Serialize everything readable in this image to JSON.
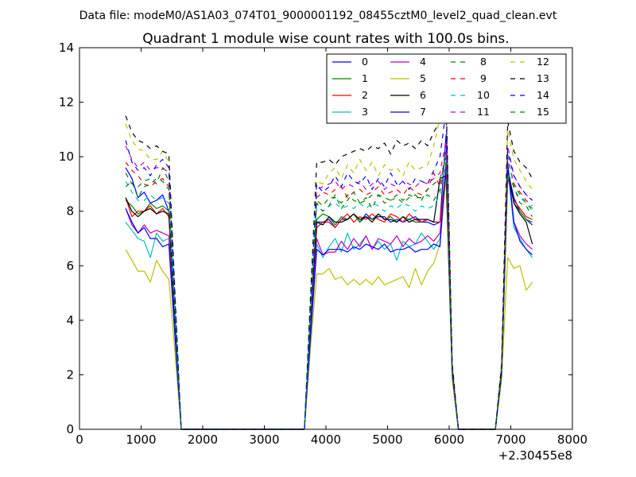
{
  "figure": {
    "suptitle": "Data file: modeM0/AS1A03_074T01_9000001192_08455cztM0_level2_quad_clean.evt"
  },
  "chart_data": {
    "type": "line",
    "title": "Quadrant 1 module wise count rates with 100.0s bins.",
    "xlabel": "",
    "ylabel": "",
    "xlim": [
      0,
      8000
    ],
    "ylim": [
      0,
      14
    ],
    "x_offset_label": "+2.30455e8",
    "xticks": [
      "0",
      "1000",
      "2000",
      "3000",
      "4000",
      "5000",
      "6000",
      "7000",
      "8000"
    ],
    "yticks": [
      "0",
      "2",
      "4",
      "6",
      "8",
      "10",
      "12",
      "14"
    ],
    "grid": false,
    "legend_position": "top-right",
    "legend_columns": 4,
    "x": [
      750,
      850,
      950,
      1050,
      1150,
      1250,
      1350,
      1450,
      1550,
      1650,
      1750,
      3650,
      3750,
      3850,
      3950,
      4050,
      4150,
      4250,
      4350,
      4450,
      4550,
      4650,
      4750,
      4850,
      4950,
      5050,
      5150,
      5250,
      5350,
      5450,
      5550,
      5650,
      5750,
      5850,
      5950,
      6050,
      6150,
      6250,
      6750,
      6850,
      6950,
      7050,
      7150,
      7250,
      7350
    ],
    "series": [
      {
        "name": "0",
        "color": "#0000ff",
        "style": "solid",
        "values": [
          9.6,
          9.2,
          8.5,
          8.7,
          8.3,
          8.4,
          8.6,
          8.0,
          4.0,
          0,
          0,
          0,
          4.0,
          7.6,
          7.6,
          7.7,
          7.4,
          7.7,
          7.7,
          7.9,
          7.6,
          7.9,
          7.7,
          7.8,
          7.8,
          7.6,
          7.7,
          7.6,
          7.7,
          7.8,
          7.6,
          7.6,
          7.5,
          7.6,
          10.8,
          2.0,
          0,
          0,
          0,
          2.0,
          9.5,
          8.5,
          8.0,
          7.7,
          7.5
        ]
      },
      {
        "name": "1",
        "color": "#008000",
        "style": "solid",
        "values": [
          8.4,
          8.2,
          7.9,
          8.0,
          8.3,
          8.1,
          8.2,
          8.0,
          4.0,
          0,
          0,
          0,
          4.0,
          7.7,
          7.9,
          7.8,
          7.5,
          7.8,
          7.7,
          7.9,
          7.6,
          7.8,
          7.7,
          7.9,
          7.7,
          7.8,
          7.6,
          7.8,
          7.7,
          7.6,
          7.6,
          7.7,
          7.6,
          7.6,
          9.6,
          2.0,
          0,
          0,
          0,
          2.0,
          9.4,
          8.3,
          8.0,
          7.7,
          7.6
        ]
      },
      {
        "name": "2",
        "color": "#ff0000",
        "style": "solid",
        "values": [
          8.5,
          7.8,
          8.0,
          8.0,
          8.2,
          7.9,
          8.1,
          7.8,
          4.0,
          0,
          0,
          0,
          4.0,
          7.4,
          7.6,
          7.6,
          7.4,
          7.7,
          7.9,
          7.6,
          7.8,
          7.7,
          7.9,
          7.7,
          7.6,
          7.9,
          7.8,
          7.6,
          7.9,
          7.7,
          7.6,
          7.7,
          7.6,
          7.6,
          9.6,
          2.0,
          0,
          0,
          0,
          2.0,
          9.2,
          8.4,
          8.1,
          7.8,
          7.7
        ]
      },
      {
        "name": "3",
        "color": "#00bfbf",
        "style": "solid",
        "values": [
          7.6,
          7.3,
          7.0,
          6.9,
          6.3,
          7.2,
          6.9,
          7.0,
          3.5,
          0,
          0,
          0,
          3.5,
          6.8,
          6.3,
          6.7,
          7.0,
          6.5,
          7.2,
          6.6,
          6.8,
          7.1,
          6.6,
          6.9,
          6.6,
          6.8,
          6.2,
          6.9,
          6.7,
          6.8,
          7.2,
          6.9,
          6.6,
          7.0,
          9.4,
          2.0,
          0,
          0,
          0,
          2.0,
          9.6,
          7.4,
          7.0,
          6.6,
          6.3
        ]
      },
      {
        "name": "4",
        "color": "#bf00bf",
        "style": "solid",
        "values": [
          8.1,
          7.5,
          7.2,
          7.5,
          7.2,
          7.3,
          7.2,
          7.1,
          3.6,
          0,
          0,
          0,
          3.6,
          7.0,
          6.4,
          6.5,
          6.5,
          6.9,
          6.6,
          7.0,
          6.7,
          7.1,
          6.6,
          7.0,
          6.9,
          6.8,
          7.1,
          6.7,
          7.0,
          6.8,
          6.9,
          7.1,
          6.9,
          7.2,
          9.5,
          2.0,
          0,
          0,
          0,
          2.0,
          9.8,
          7.6,
          7.1,
          6.8,
          6.6
        ]
      },
      {
        "name": "5",
        "color": "#bfbf00",
        "style": "solid",
        "values": [
          6.6,
          6.2,
          5.8,
          5.8,
          5.4,
          6.2,
          5.8,
          5.5,
          2.8,
          0,
          0,
          0,
          3.0,
          5.7,
          5.7,
          5.9,
          5.5,
          5.6,
          5.3,
          5.5,
          5.3,
          5.5,
          5.3,
          5.6,
          5.3,
          5.4,
          5.5,
          5.6,
          5.2,
          5.9,
          5.3,
          5.8,
          6.1,
          6.8,
          9.2,
          1.8,
          0,
          0,
          0,
          1.8,
          6.3,
          5.9,
          6.0,
          5.1,
          5.4
        ]
      },
      {
        "name": "6",
        "color": "#000000",
        "style": "solid",
        "values": [
          8.5,
          8.0,
          7.8,
          8.0,
          8.1,
          7.9,
          8.0,
          7.9,
          4.0,
          0,
          0,
          0,
          4.0,
          7.6,
          7.5,
          7.8,
          7.6,
          7.6,
          7.7,
          7.9,
          7.7,
          7.8,
          7.6,
          7.9,
          7.7,
          7.7,
          7.6,
          7.8,
          7.6,
          7.7,
          7.7,
          7.7,
          7.6,
          9.2,
          9.3,
          2.0,
          0,
          0,
          0,
          2.0,
          9.6,
          8.3,
          7.9,
          7.6,
          6.8
        ]
      },
      {
        "name": "7",
        "color": "#0000ff",
        "style": "solid",
        "values": [
          8.1,
          7.6,
          7.2,
          7.4,
          7.0,
          7.0,
          6.7,
          6.8,
          3.4,
          0,
          0,
          0,
          3.4,
          6.6,
          6.4,
          6.6,
          6.6,
          6.6,
          6.5,
          6.7,
          6.6,
          6.8,
          6.7,
          6.6,
          6.8,
          6.5,
          6.6,
          6.6,
          6.7,
          6.5,
          6.6,
          6.6,
          6.8,
          6.7,
          9.8,
          2.0,
          0,
          0,
          0,
          2.0,
          9.7,
          7.6,
          6.9,
          6.6,
          6.4
        ]
      },
      {
        "name": "8",
        "color": "#008000",
        "style": "dashed",
        "values": [
          9.4,
          9.0,
          8.9,
          9.1,
          9.2,
          9.0,
          9.6,
          9.1,
          4.5,
          0,
          0,
          0,
          4.3,
          8.4,
          8.2,
          8.5,
          8.5,
          8.3,
          8.6,
          8.4,
          8.3,
          8.4,
          8.6,
          8.6,
          8.5,
          8.4,
          8.6,
          8.4,
          8.6,
          8.5,
          8.5,
          8.6,
          8.4,
          8.8,
          9.8,
          2.1,
          0,
          0,
          0,
          2.1,
          9.9,
          9.0,
          8.6,
          8.3,
          8.1
        ]
      },
      {
        "name": "9",
        "color": "#ff0000",
        "style": "dashed",
        "values": [
          9.8,
          9.5,
          9.3,
          9.0,
          8.9,
          9.1,
          9.2,
          8.9,
          4.5,
          0,
          0,
          0,
          4.4,
          8.5,
          8.7,
          8.6,
          8.8,
          8.9,
          8.5,
          8.7,
          8.8,
          8.6,
          8.7,
          8.9,
          8.6,
          8.7,
          8.8,
          8.6,
          8.9,
          8.7,
          8.6,
          8.8,
          9.4,
          8.9,
          10.2,
          2.1,
          0,
          0,
          0,
          2.1,
          10.0,
          9.0,
          8.7,
          8.4,
          8.2
        ]
      },
      {
        "name": "10",
        "color": "#00bfbf",
        "style": "dashed",
        "values": [
          9.1,
          8.7,
          8.4,
          8.4,
          8.6,
          8.4,
          8.5,
          8.3,
          4.2,
          0,
          0,
          0,
          4.2,
          8.2,
          8.0,
          8.2,
          8.3,
          8.1,
          8.2,
          8.1,
          8.3,
          8.1,
          8.3,
          8.2,
          8.0,
          8.2,
          8.1,
          8.3,
          8.2,
          8.0,
          8.2,
          8.1,
          8.2,
          8.6,
          10.1,
          2.0,
          0,
          0,
          0,
          2.0,
          10.1,
          8.8,
          8.5,
          8.3,
          8.0
        ]
      },
      {
        "name": "11",
        "color": "#bf00bf",
        "style": "dashed",
        "values": [
          10.4,
          9.9,
          9.6,
          9.8,
          9.5,
          9.6,
          9.6,
          9.4,
          4.7,
          0,
          0,
          0,
          4.6,
          8.8,
          8.9,
          9.0,
          9.1,
          8.8,
          9.0,
          8.9,
          9.1,
          8.8,
          9.0,
          9.1,
          8.8,
          9.0,
          8.9,
          9.1,
          9.0,
          8.9,
          9.1,
          9.0,
          9.2,
          9.4,
          10.6,
          2.2,
          0,
          0,
          0,
          2.2,
          10.4,
          9.3,
          8.9,
          8.6,
          8.4
        ]
      },
      {
        "name": "12",
        "color": "#bfbf00",
        "style": "dashed",
        "values": [
          11.2,
          10.6,
          10.3,
          10.2,
          9.9,
          9.9,
          10.2,
          9.8,
          4.9,
          0,
          0,
          0,
          4.8,
          9.1,
          9.0,
          9.4,
          9.6,
          9.2,
          9.7,
          9.4,
          9.9,
          9.5,
          9.8,
          9.3,
          9.7,
          9.5,
          9.6,
          9.3,
          9.8,
          9.5,
          9.6,
          9.7,
          10.4,
          11.4,
          12.2,
          2.4,
          0,
          0,
          0,
          2.4,
          11.0,
          9.9,
          9.5,
          9.1,
          8.8
        ]
      },
      {
        "name": "13",
        "color": "#000000",
        "style": "dashed",
        "values": [
          11.5,
          10.9,
          10.6,
          10.5,
          10.3,
          10.4,
          10.2,
          10.1,
          5.0,
          0,
          0,
          0,
          4.9,
          9.8,
          9.8,
          9.9,
          9.7,
          10.0,
          10.1,
          10.2,
          10.3,
          10.2,
          10.4,
          10.3,
          10.5,
          10.1,
          10.6,
          10.4,
          10.5,
          10.3,
          10.6,
          10.4,
          10.9,
          11.3,
          12.2,
          2.4,
          0,
          0,
          0,
          2.4,
          11.3,
          10.2,
          9.8,
          9.6,
          9.2
        ]
      },
      {
        "name": "14",
        "color": "#0000ff",
        "style": "dashed",
        "values": [
          10.6,
          9.8,
          9.5,
          9.6,
          9.3,
          9.7,
          9.9,
          9.6,
          4.8,
          0,
          0,
          0,
          4.6,
          9.0,
          8.7,
          8.9,
          9.3,
          8.9,
          9.4,
          9.1,
          9.0,
          9.3,
          8.8,
          9.2,
          8.9,
          9.4,
          9.0,
          9.1,
          8.8,
          9.2,
          9.1,
          9.0,
          9.5,
          10.0,
          11.7,
          2.2,
          0,
          0,
          0,
          2.2,
          10.2,
          9.3,
          8.9,
          8.6,
          8.4
        ]
      },
      {
        "name": "15",
        "color": "#008000",
        "style": "dashed",
        "values": [
          8.9,
          9.1,
          8.5,
          8.9,
          9.0,
          9.2,
          9.1,
          8.8,
          4.4,
          0,
          0,
          0,
          4.2,
          8.3,
          8.0,
          8.2,
          8.6,
          8.1,
          8.4,
          8.7,
          8.3,
          8.5,
          8.1,
          8.6,
          8.3,
          8.4,
          8.5,
          8.3,
          8.5,
          8.6,
          8.4,
          8.8,
          9.0,
          9.2,
          10.0,
          2.0,
          0,
          0,
          0,
          2.0,
          9.4,
          8.9,
          8.3,
          8.2,
          7.8
        ]
      }
    ]
  }
}
